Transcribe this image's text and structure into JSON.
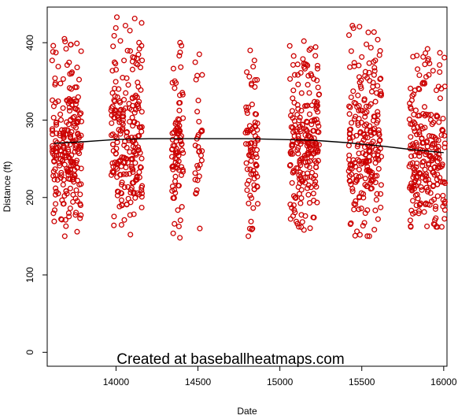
{
  "chart_data": {
    "type": "scatter",
    "title": "",
    "xlabel": "Date",
    "ylabel": "Distance (ft)",
    "xlim": [
      13580,
      16020
    ],
    "ylim": [
      -18,
      446
    ],
    "x_ticks": [
      14000,
      14500,
      15000,
      15500,
      16000
    ],
    "y_ticks": [
      0,
      100,
      200,
      300,
      400
    ],
    "grid": false,
    "watermark": "Created at baseballheatmaps.com",
    "point_color": "#cc0000",
    "line_color": "#000000",
    "season_clusters": [
      {
        "x_start": 13610,
        "x_end": 13790,
        "y_min": 150,
        "y_max": 405,
        "center": 260,
        "n": 230
      },
      {
        "x_start": 13970,
        "x_end": 14160,
        "y_min": 152,
        "y_max": 433,
        "center": 275,
        "n": 230
      },
      {
        "x_start": 14340,
        "x_end": 14410,
        "y_min": 148,
        "y_max": 400,
        "center": 270,
        "n": 90
      },
      {
        "x_start": 14480,
        "x_end": 14530,
        "y_min": 160,
        "y_max": 385,
        "center": 265,
        "n": 30
      },
      {
        "x_start": 14790,
        "x_end": 14870,
        "y_min": 150,
        "y_max": 390,
        "center": 265,
        "n": 80
      },
      {
        "x_start": 15060,
        "x_end": 15240,
        "y_min": 158,
        "y_max": 402,
        "center": 265,
        "n": 220
      },
      {
        "x_start": 15420,
        "x_end": 15620,
        "y_min": 150,
        "y_max": 422,
        "center": 262,
        "n": 230
      },
      {
        "x_start": 15790,
        "x_end": 16010,
        "y_min": 162,
        "y_max": 392,
        "center": 245,
        "n": 240
      }
    ],
    "trend_line": {
      "x": [
        13620,
        13800,
        14000,
        14200,
        14400,
        14600,
        14800,
        15000,
        15200,
        15400,
        15600,
        15800,
        16000
      ],
      "y": [
        270,
        272,
        275,
        276,
        276,
        276,
        276,
        275,
        274,
        271,
        267,
        262,
        258
      ]
    }
  }
}
